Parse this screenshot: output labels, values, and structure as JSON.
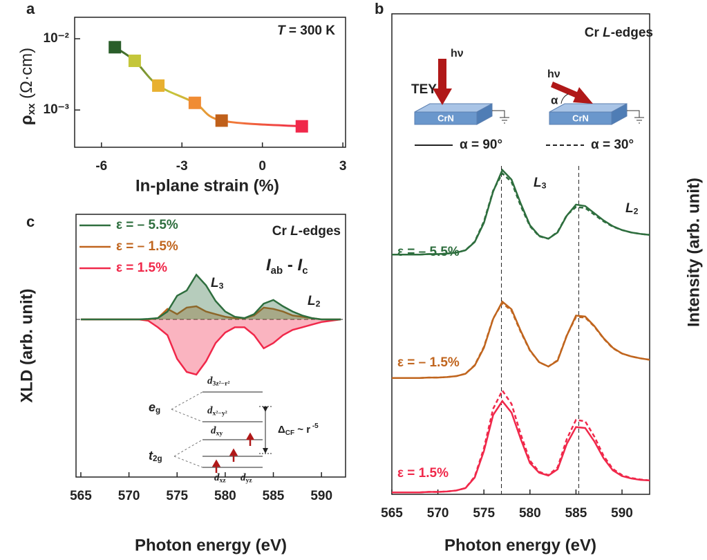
{
  "chart_data": [
    {
      "type": "scatter",
      "panel": "a",
      "xlabel": "In-plane strain (%)",
      "ylabel": {
        "symbol": "ρ",
        "sub": "xx",
        "unit": " (Ω·cm)"
      },
      "annotation": {
        "italic": "T",
        "rest": " = 300 K"
      },
      "x": [
        -5.5,
        -4.76,
        -3.88,
        -2.52,
        -1.52,
        1.47
      ],
      "values": [
        0.0076,
        0.0049,
        0.0022,
        0.00126,
        0.00071,
        0.00059
      ],
      "colors": [
        "#2a5e2a",
        "#c4c63a",
        "#e8b030",
        "#f08c34",
        "#c0601a",
        "#f0284a"
      ],
      "xlim": [
        -7,
        3.1
      ],
      "xticks": [
        -6,
        -3,
        0,
        3
      ],
      "yscale": "log",
      "ylim": [
        0.0003,
        0.02
      ],
      "yticks": [
        {
          "value": 0.01,
          "label": "10⁻²"
        },
        {
          "value": 0.001,
          "label": "10⁻³"
        }
      ]
    },
    {
      "type": "line",
      "panel": "b",
      "title": {
        "text": "Cr ",
        "italic": "L",
        "rest": "-edges"
      },
      "xlabel": "Photon energy (eV)",
      "ylabel": "Intensity (arb. unit)",
      "inset": {
        "method": "TEY",
        "photon": "hν",
        "sample": "CrN",
        "angle": "α"
      },
      "angle_legend": [
        {
          "label": "α = 90°",
          "dashed": false
        },
        {
          "label": "α = 30°",
          "dashed": true
        }
      ],
      "peaks": [
        {
          "text": "L",
          "sub": "3"
        },
        {
          "text": "L",
          "sub": "2"
        }
      ],
      "vlines": [
        576.9,
        585.3
      ],
      "x": [
        565,
        566,
        567,
        568,
        569,
        570,
        571,
        572,
        573,
        574,
        575,
        576,
        577,
        578,
        579,
        580,
        581,
        582,
        583,
        584,
        585,
        586,
        587,
        588,
        589,
        590,
        591,
        592,
        593
      ],
      "xlim": [
        565,
        593
      ],
      "xticks": [
        565,
        570,
        575,
        580,
        585,
        590
      ],
      "ylim": [
        0,
        100
      ],
      "series": [
        {
          "name": "ε = – 5.5%",
          "color": "#2e6e3e",
          "values": [
            49.9,
            49.9,
            49.9,
            49.9,
            50.0,
            50.0,
            50.1,
            50.3,
            50.8,
            52.5,
            56.5,
            63.0,
            67.5,
            65.5,
            60.5,
            56.0,
            53.8,
            53.2,
            54.5,
            58.0,
            60.3,
            60.0,
            58.5,
            57.0,
            55.8,
            55.0,
            54.5,
            54.2,
            54.0
          ],
          "values_dashed": [
            49.9,
            49.9,
            49.9,
            49.9,
            50.0,
            50.0,
            50.1,
            50.3,
            50.8,
            52.6,
            56.8,
            63.2,
            66.8,
            65.0,
            60.0,
            55.8,
            53.7,
            53.2,
            54.6,
            58.1,
            59.8,
            59.6,
            58.2,
            56.8,
            55.7,
            55.0,
            54.5,
            54.2,
            54.0
          ]
        },
        {
          "name": "ε = – 1.5%",
          "color": "#c0651e",
          "values": [
            24.2,
            24.2,
            24.2,
            24.2,
            24.3,
            24.3,
            24.4,
            24.6,
            25.1,
            26.8,
            30.5,
            36.5,
            40.1,
            38.5,
            34.0,
            30.0,
            27.5,
            26.6,
            27.8,
            33.0,
            37.2,
            37.0,
            35.0,
            32.5,
            30.5,
            29.3,
            28.7,
            28.3,
            28.0
          ],
          "values_dashed": [
            24.2,
            24.2,
            24.2,
            24.2,
            24.3,
            24.3,
            24.4,
            24.6,
            25.1,
            26.9,
            30.7,
            36.6,
            39.8,
            38.2,
            33.8,
            29.9,
            27.5,
            26.6,
            27.9,
            33.1,
            36.9,
            36.8,
            34.9,
            32.4,
            30.4,
            29.3,
            28.7,
            28.3,
            28.0
          ]
        },
        {
          "name": "ε = 1.5%",
          "color": "#f0284a",
          "values": [
            0.4,
            0.4,
            0.4,
            0.4,
            0.5,
            0.5,
            0.6,
            0.8,
            1.3,
            3.5,
            9.0,
            16.5,
            19.4,
            17.0,
            11.5,
            6.5,
            4.5,
            3.9,
            5.2,
            10.5,
            14.0,
            13.8,
            11.0,
            7.5,
            5.0,
            3.8,
            3.3,
            3.0,
            2.9
          ],
          "values_dashed": [
            0.4,
            0.4,
            0.4,
            0.4,
            0.5,
            0.5,
            0.6,
            0.8,
            1.3,
            3.7,
            9.6,
            17.8,
            21.6,
            18.8,
            12.5,
            7.0,
            4.7,
            4.0,
            5.6,
            11.5,
            15.5,
            15.2,
            12.0,
            8.0,
            5.3,
            4.0,
            3.4,
            3.1,
            2.9
          ]
        }
      ]
    },
    {
      "type": "area",
      "panel": "c",
      "title": {
        "text": "Cr ",
        "italic": "L",
        "rest": "-edges"
      },
      "formula": {
        "a": "I",
        "a_sub": "ab",
        "mid": " - ",
        "b": "I",
        "b_sub": "c"
      },
      "peaks": [
        {
          "text": "L",
          "sub": "3"
        },
        {
          "text": "L",
          "sub": "2"
        }
      ],
      "xlabel": "Photon energy (eV)",
      "ylabel": "XLD (arb. unit)",
      "legend": "upper left",
      "x": [
        565,
        566,
        567,
        568,
        569,
        570,
        571,
        572,
        573,
        574,
        575,
        576,
        577,
        578,
        579,
        580,
        581,
        582,
        583,
        584,
        585,
        586,
        587,
        588,
        589,
        590,
        591,
        592
      ],
      "xlim": [
        564.5,
        592.5
      ],
      "xticks": [
        565,
        570,
        575,
        580,
        585,
        590
      ],
      "ylim": [
        -6,
        4
      ],
      "series": [
        {
          "name": "ε = – 5.5%",
          "color": "#2e6e3e",
          "values": [
            0,
            0,
            0,
            0,
            0,
            0,
            0,
            0.02,
            0.05,
            0.3,
            0.9,
            1.1,
            1.7,
            1.3,
            0.7,
            0.3,
            0.1,
            0.05,
            0.2,
            0.6,
            0.74,
            0.5,
            0.3,
            0.15,
            0.05,
            0,
            0,
            0
          ]
        },
        {
          "name": "ε = – 1.5%",
          "color": "#c0651e",
          "values": [
            0,
            0,
            0,
            0,
            0,
            0,
            0,
            0,
            0.05,
            0.4,
            0.2,
            0.45,
            0.5,
            0.3,
            0.2,
            0.1,
            0.05,
            0.05,
            0.15,
            0.45,
            0.4,
            0.3,
            0.15,
            0.1,
            0.05,
            0,
            0,
            0
          ]
        },
        {
          "name": "ε = 1.5%",
          "color": "#f0284a",
          "values": [
            0,
            0,
            0,
            0,
            0,
            0,
            0,
            -0.05,
            -0.3,
            -0.6,
            -1.5,
            -2.0,
            -2.1,
            -1.6,
            -0.9,
            -0.5,
            -0.3,
            -0.3,
            -0.6,
            -1.1,
            -0.9,
            -0.6,
            -0.4,
            -0.3,
            -0.2,
            -0.1,
            -0.05,
            0
          ]
        }
      ],
      "inset": {
        "eg": {
          "text": "e",
          "sub": "g"
        },
        "t2g": {
          "text": "t",
          "sub": "2g"
        },
        "levels": [
          {
            "text": "d",
            "sub": "3z²−r²"
          },
          {
            "text": "d",
            "sub": "x²−y²"
          },
          {
            "text": "d",
            "sub": "xy"
          },
          {
            "text": "d",
            "sub": "xz"
          },
          {
            "text": "d",
            "sub": "yz"
          }
        ],
        "splitting": {
          "text": "Δ",
          "sub": "CF",
          "rest": " ~ r",
          "sup": " -5"
        }
      }
    }
  ]
}
